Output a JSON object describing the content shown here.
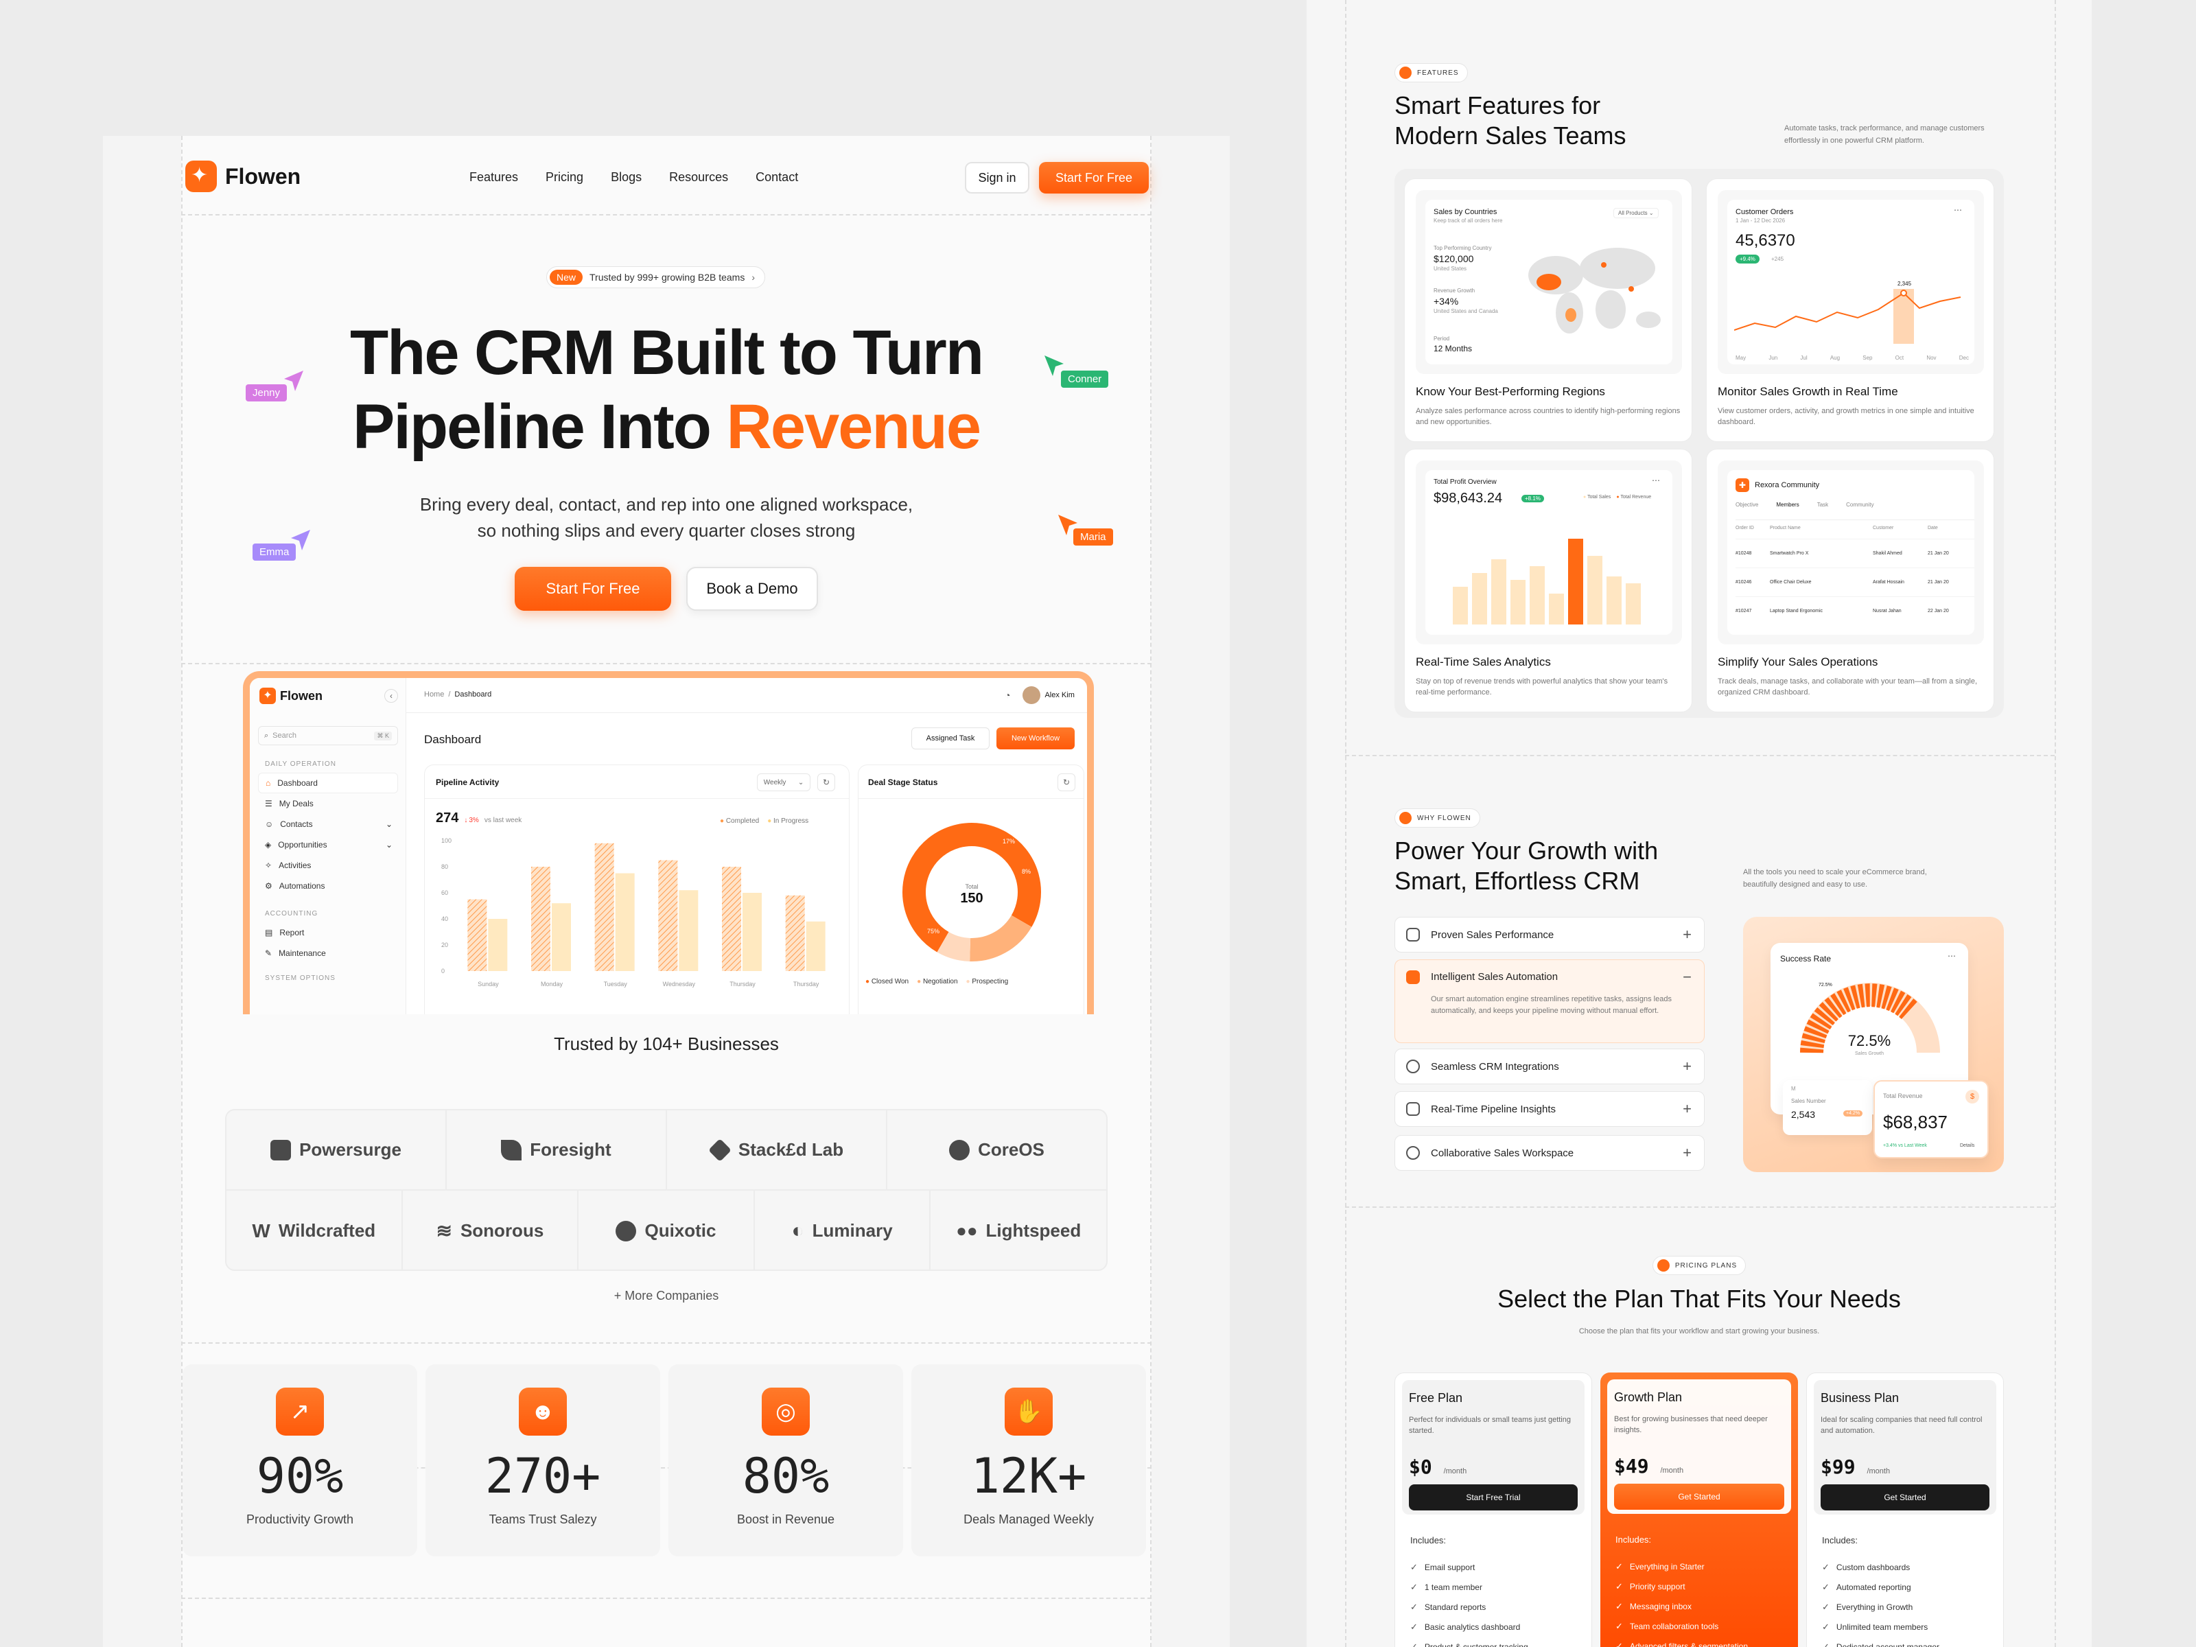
{
  "nav": {
    "brand": "Flowen",
    "links": [
      "Features",
      "Pricing",
      "Blogs",
      "Resources",
      "Contact"
    ],
    "signin": "Sign in",
    "cta": "Start For Free"
  },
  "hero": {
    "badge_new": "New",
    "badge_text": "Trusted by 999+ growing B2B teams",
    "title_line1": "The CRM Built to Turn",
    "title_line2a": "Pipeline Into ",
    "title_line2b": "Revenue",
    "sub_line1": "Bring every deal, contact, and rep into one aligned workspace,",
    "sub_line2": "so nothing slips and every quarter closes strong",
    "cta_primary": "Start For Free",
    "cta_secondary": "Book a Demo",
    "cursors": [
      "Jenny",
      "Conner",
      "Emma",
      "Maria"
    ],
    "cursor_colors": [
      "#d77be3",
      "#2bb673",
      "#a78bfa",
      "#ff6a14"
    ]
  },
  "dashboard": {
    "brand": "Flowen",
    "search_placeholder": "Search",
    "search_kbd": "⌘ K",
    "section_daily": "DAILY OPERATION",
    "daily_items": [
      "Dashboard",
      "My Deals",
      "Contacts",
      "Opportunities",
      "Activities",
      "Automations"
    ],
    "section_accounting": "ACCOUNTING",
    "accounting_items": [
      "Report",
      "Maintenance"
    ],
    "section_system": "SYSTEM OPTIONS",
    "breadcrumb_home": "Home",
    "breadcrumb_sep": "/",
    "breadcrumb_current": "Dashboard",
    "user": "Alex Kim",
    "page_title": "Dashboard",
    "btn_assigned": "Assigned Task",
    "btn_new": "New Workflow",
    "pipeline": {
      "title": "Pipeline Activity",
      "period": "Weekly",
      "total": "274",
      "change": "3%",
      "change_label": "vs last week",
      "legend": [
        "Completed",
        "In Progress"
      ]
    },
    "deal_stage": {
      "title": "Deal Stage Status",
      "total_label": "Total",
      "total": "150",
      "legend": [
        "Closed Won",
        "Negotiation",
        "Prospecting"
      ],
      "slice_labels": [
        "75%",
        "17%",
        "8%"
      ]
    }
  },
  "pipeline_chart": {
    "type": "bar",
    "categories": [
      "Sunday",
      "Monday",
      "Tuesday",
      "Wednesday",
      "Thursday",
      "Thursday"
    ],
    "series": [
      {
        "name": "Completed",
        "values": [
          55,
          80,
          98,
          85,
          80,
          58
        ]
      },
      {
        "name": "In Progress",
        "values": [
          40,
          52,
          75,
          62,
          60,
          38
        ]
      }
    ],
    "ylim": [
      0,
      100
    ],
    "yticks": [
      "100",
      "80",
      "60",
      "40",
      "20",
      "0"
    ]
  },
  "trusted": {
    "title": "Trusted by 104+ Businesses",
    "row1": [
      "Powersurge",
      "Foresight",
      "Stack£d Lab",
      "CoreOS"
    ],
    "row2": [
      "Wildcrafted",
      "Sonorous",
      "Quixotic",
      "Luminary",
      "Lightspeed"
    ],
    "more": "+ More Companies"
  },
  "stats": [
    {
      "value": "90%",
      "label": "Productivity Growth",
      "icon": "chart-up-icon"
    },
    {
      "value": "270+",
      "label": "Teams Trust Salezy",
      "icon": "team-icon"
    },
    {
      "value": "80%",
      "label": "Boost in Revenue",
      "icon": "coins-icon"
    },
    {
      "value": "12K+",
      "label": "Deals Managed Weekly",
      "icon": "handshake-icon"
    }
  ],
  "features": {
    "pill": "FEATURES",
    "title_line1": "Smart Features for",
    "title_line2": "Modern Sales Teams",
    "desc": "Automate tasks, track performance, and manage customers effortlessly in one powerful CRM platform.",
    "cards": [
      {
        "title": "Know Your Best-Performing Regions",
        "desc": "Analyze sales performance across countries to identify high-performing regions and new opportunities.",
        "mini_title": "Sales by Countries",
        "mini_sub": "Keep track of all orders here",
        "mini_filter": "All Products",
        "top_label": "Top Performing Country",
        "top_value": "$120,000",
        "top_country": "United States",
        "growth_label": "Revenue Growth",
        "growth_value": "+34%",
        "growth_country": "United States and Canada",
        "period_label": "Period",
        "period_value": "12 Months"
      },
      {
        "title": "Monitor Sales Growth in Real Time",
        "desc": "View customer orders, activity, and growth metrics in one simple and intuitive dashboard.",
        "mini_title": "Customer Orders",
        "mini_sub": "1 Jan - 12 Dec 2026",
        "mini_value": "45,6370",
        "mini_badge": "+9.4%",
        "mini_delta": "+245",
        "peak": "2,345",
        "months": [
          "May",
          "Jun",
          "Jul",
          "Aug",
          "Sep",
          "Oct",
          "Nov",
          "Dec"
        ]
      },
      {
        "title": "Real-Time Sales Analytics",
        "desc": "Stay on top of revenue trends with powerful analytics that show your team's real-time performance.",
        "mini_title": "Total Profit Overview",
        "mini_value": "$98,643.24",
        "mini_badge": "+8.1%",
        "legend": [
          "Total Sales",
          "Total Revenue"
        ]
      },
      {
        "title": "Simplify Your Sales Operations",
        "desc": "Track deals, manage tasks, and collaborate with your team—all from a single, organized CRM dashboard.",
        "mini_title": "Rexora Community",
        "tabs": [
          "Objective",
          "Members",
          "Task",
          "Community"
        ],
        "cols": [
          "Order ID",
          "Product Name",
          "Customer",
          "Date"
        ],
        "rows": [
          [
            "#10248",
            "Smartwatch Pro X",
            "Shakil Ahmed",
            "21 Jan 20"
          ],
          [
            "#10246",
            "Office Chair Deluxe",
            "Arafat Hossain",
            "21 Jan 20"
          ],
          [
            "#10247",
            "Laptop Stand Ergonomic",
            "Nusrat Jahan",
            "22 Jan 20"
          ]
        ]
      }
    ]
  },
  "why": {
    "pill": "WHY FLOWEN",
    "title_line1": "Power Your Growth with",
    "title_line2": "Smart, Effortless CRM",
    "desc": "All the tools you need to scale your eCommerce brand, beautifully designed and easy to use.",
    "items": [
      "Proven Sales Performance",
      "Intelligent Sales Automation",
      "Seamless CRM Integrations",
      "Real-Time Pipeline Insights",
      "Collaborative Sales Workspace"
    ],
    "expanded_desc": "Our smart automation engine streamlines repetitive tasks, assigns leads automatically, and keeps your pipeline moving without manual effort.",
    "success_title": "Success Rate",
    "success_value": "72.5%",
    "success_sub": "Sales Growth",
    "gauge_label": "72.5%",
    "sales_number_label": "Sales Number",
    "sales_number": "2,543",
    "sales_badge": "+4.2%",
    "revenue_label": "Total Revenue",
    "revenue_value": "$68,837",
    "revenue_delta": "+3.4% vs Last Week",
    "revenue_details": "Details"
  },
  "pricing": {
    "pill": "PRICING PLANS",
    "title": "Select the Plan That Fits Your Needs",
    "sub": "Choose the plan that fits your workflow and start growing your business.",
    "includes": "Includes:",
    "plans": [
      {
        "name": "Free Plan",
        "desc": "Perfect for individuals or small teams just getting started.",
        "price": "$0",
        "per": "/month",
        "cta": "Start Free Trial",
        "features": [
          "Email support",
          "1 team member",
          "Standard reports",
          "Basic analytics dashboard",
          "Product & customer tracking"
        ]
      },
      {
        "name": "Growth Plan",
        "desc": "Best for growing businesses that need deeper insights.",
        "price": "$49",
        "per": "/month",
        "cta": "Get Started",
        "features": [
          "Everything in Starter",
          "Priority support",
          "Messaging inbox",
          "Team collaboration tools",
          "Advanced filters & segmentation"
        ]
      },
      {
        "name": "Business Plan",
        "desc": "Ideal for scaling companies that need full control and automation.",
        "price": "$99",
        "per": "/month",
        "cta": "Get Started",
        "features": [
          "Custom dashboards",
          "Automated reporting",
          "Everything in Growth",
          "Unlimited team members",
          "Dedicated account manager"
        ]
      }
    ]
  },
  "colors": {
    "accent": "#ff6a14",
    "dark": "#161616"
  }
}
